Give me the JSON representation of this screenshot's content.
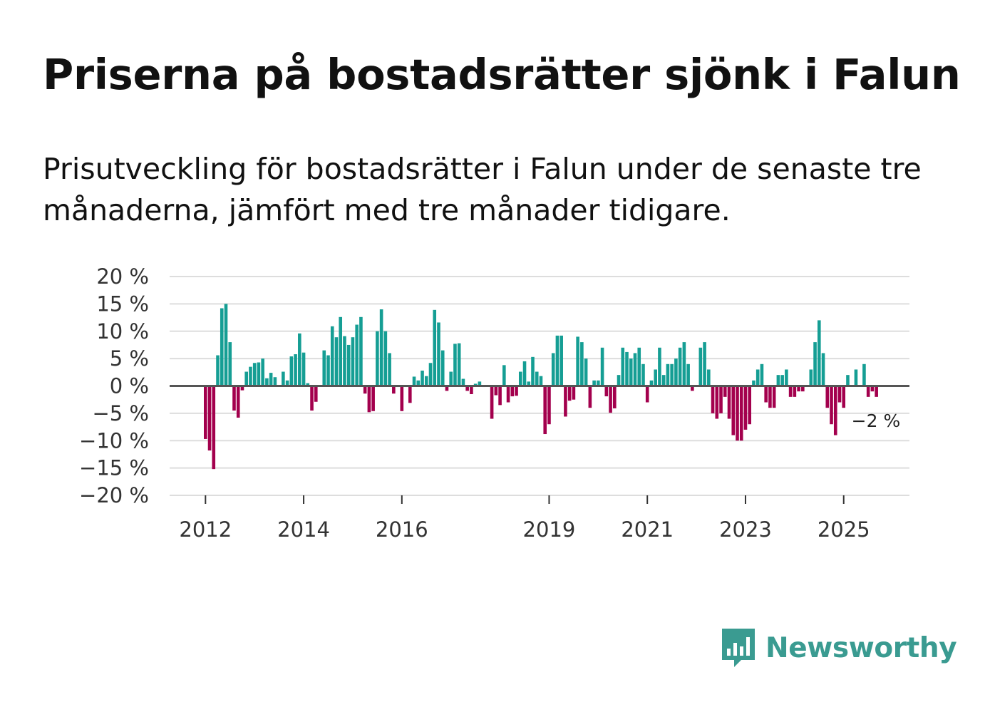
{
  "title": "Priserna på bostadsrätter sjönk i Falun",
  "subtitle": "Prisutveckling för bostadsrätter i Falun under de senaste tre månaderna, jämfört med tre månader tidigare.",
  "logo": {
    "text": "Newsworthy",
    "icon": "bar-chart-speech-bubble-icon"
  },
  "colors": {
    "positive": "#159e94",
    "negative": "#a3004d",
    "grid": "#dddddd",
    "zero": "#555555",
    "brand": "#3a9b91"
  },
  "chart_data": {
    "type": "bar",
    "title": "Priserna på bostadsrätter sjönk i Falun",
    "xlabel": "",
    "ylabel": "",
    "ylim": [
      -20,
      20
    ],
    "y_ticks": [
      20,
      15,
      10,
      5,
      0,
      -5,
      -10,
      -15,
      -20
    ],
    "y_tick_labels": [
      "20 %",
      "15 %",
      "10 %",
      "5 %",
      "0 %",
      "−5 %",
      "−10 %",
      "−15 %",
      "−20 %"
    ],
    "x_ticks": [
      {
        "label": "2012",
        "year": 2012
      },
      {
        "label": "2014",
        "year": 2014
      },
      {
        "label": "2016",
        "year": 2016
      },
      {
        "label": "2019",
        "year": 2019
      },
      {
        "label": "2021",
        "year": 2021
      },
      {
        "label": "2023",
        "year": 2023
      },
      {
        "label": "2025",
        "year": 2025
      }
    ],
    "start": "2012-01",
    "annotation": {
      "label": "−2 %",
      "value": -2
    },
    "values": [
      -9.7,
      -11.8,
      -15.2,
      5.6,
      14.2,
      15.0,
      8.0,
      -4.5,
      -5.8,
      -0.8,
      2.6,
      3.5,
      4.2,
      4.3,
      5.0,
      1.4,
      2.4,
      1.6,
      0.2,
      2.6,
      1.0,
      5.4,
      5.8,
      9.6,
      6.1,
      0.5,
      -4.5,
      -2.9,
      -0.1,
      6.5,
      5.6,
      10.9,
      8.9,
      12.6,
      9.1,
      7.5,
      8.9,
      11.2,
      12.6,
      -1.4,
      -4.8,
      -4.6,
      10.0,
      14.0,
      10.0,
      6.0,
      -1.4,
      -0.2,
      -4.6,
      -0.2,
      -3.1,
      1.7,
      1.0,
      2.8,
      1.8,
      4.2,
      13.9,
      11.6,
      6.5,
      -0.9,
      2.6,
      7.7,
      7.8,
      1.3,
      -0.9,
      -1.5,
      0.4,
      0.8,
      -0.2,
      -0.1,
      -6.0,
      -1.7,
      -3.5,
      3.8,
      -3.0,
      -1.9,
      -1.8,
      2.6,
      4.5,
      0.8,
      5.3,
      2.6,
      1.8,
      -8.8,
      -7.0,
      6.0,
      9.2,
      9.2,
      -5.6,
      -2.7,
      -2.5,
      9.0,
      8.0,
      5.0,
      -4.0,
      1.0,
      1.0,
      7.0,
      -1.9,
      -4.9,
      -4.1,
      2.0,
      7.0,
      6.2,
      5.0,
      6.0,
      7.0,
      4.0,
      -3.0,
      1.0,
      3.0,
      7.0,
      2.0,
      4.0,
      4.0,
      5.0,
      7.0,
      8.0,
      4.0,
      -0.9,
      0.0,
      7.0,
      8.0,
      3.0,
      -5.0,
      -6.0,
      -5.0,
      -2.0,
      -6.0,
      -9.0,
      -10.0,
      -10.0,
      -8.0,
      -7.0,
      1.0,
      3.0,
      4.0,
      -3.0,
      -4.0,
      -4.0,
      2.0,
      2.0,
      3.0,
      -2.0,
      -2.0,
      -1.0,
      -1.0,
      0.0,
      3.0,
      8.0,
      12.0,
      6.0,
      -4.0,
      -7.0,
      -9.0,
      -3.0,
      -4.0,
      2.0,
      0.0,
      3.0,
      0.0,
      4.0,
      -2.0,
      -1.0,
      -2.0
    ]
  }
}
